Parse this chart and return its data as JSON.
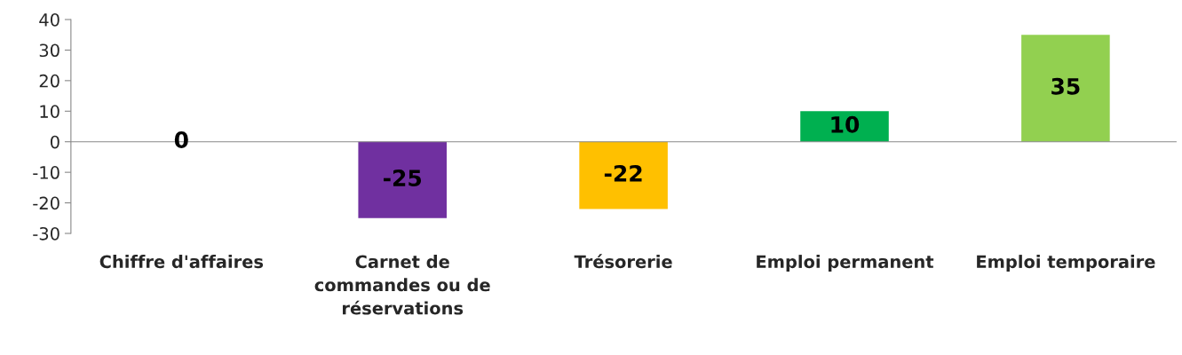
{
  "chart_data": {
    "type": "bar",
    "categories": [
      "Chiffre d'affaires",
      "Carnet de\ncommandes ou de\nréservations",
      "Trésorerie",
      "Emploi permanent",
      "Emploi temporaire"
    ],
    "values": [
      0,
      -25,
      -22,
      10,
      35
    ],
    "colors": [
      "#7f7f7f",
      "#7030a0",
      "#ffc000",
      "#00b050",
      "#92d050"
    ],
    "ylim": [
      -30,
      40
    ],
    "yticks": [
      -30,
      -20,
      -10,
      0,
      10,
      20,
      30,
      40
    ],
    "data_labels": true,
    "legend": false
  }
}
